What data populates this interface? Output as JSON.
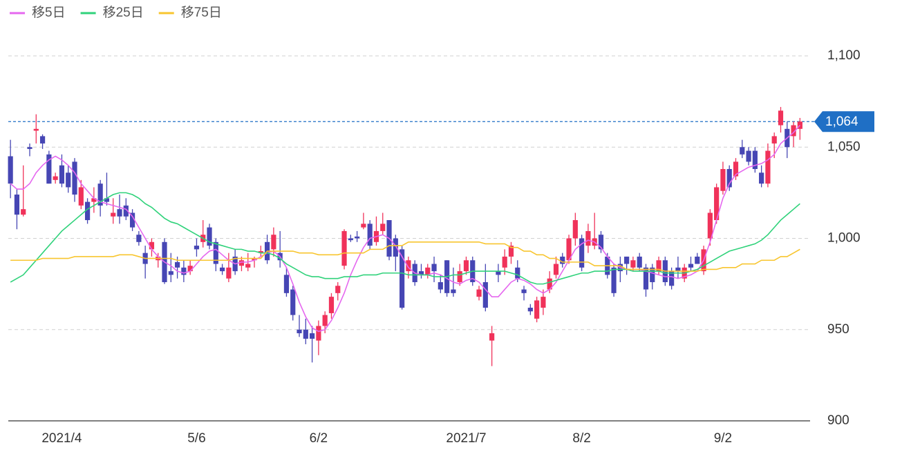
{
  "chart_data": {
    "type": "candlestick",
    "legend": "top-left",
    "up_color": "#f0325a",
    "down_color": "#4646b4",
    "ylim": [
      900,
      1100
    ],
    "yticks": [
      900,
      950,
      {
        "value": 1000,
        "label": "1,000"
      },
      {
        "value": 1050,
        "label": "1,050"
      },
      {
        "value": 1100,
        "label": "1,100"
      }
    ],
    "grid": true,
    "last": {
      "value": 1064,
      "label": "1,064",
      "color": "#1f6fc5"
    },
    "categories": [
      null,
      null,
      null,
      null,
      null,
      null,
      null,
      null,
      "2021/4",
      null,
      null,
      null,
      null,
      null,
      null,
      null,
      null,
      null,
      null,
      null,
      null,
      null,
      null,
      null,
      null,
      null,
      null,
      null,
      null,
      "5/6",
      null,
      null,
      null,
      null,
      null,
      null,
      null,
      null,
      null,
      null,
      null,
      null,
      null,
      null,
      null,
      null,
      null,
      null,
      "6/2",
      null,
      null,
      null,
      null,
      null,
      null,
      null,
      null,
      null,
      null,
      null,
      null,
      null,
      null,
      null,
      null,
      null,
      null,
      null,
      null,
      null,
      null,
      "2021/7",
      null,
      null,
      null,
      null,
      null,
      null,
      null,
      null,
      null,
      null,
      null,
      null,
      null,
      null,
      null,
      null,
      null,
      "8/2",
      null,
      null,
      null,
      null,
      null,
      null,
      null,
      null,
      null,
      null,
      null,
      null,
      null,
      null,
      null,
      null,
      null,
      null,
      null,
      null,
      null,
      "9/2",
      null,
      null,
      null,
      null,
      null,
      null,
      null,
      null,
      null,
      null,
      null,
      null
    ],
    "ohlc": [
      [
        1045,
        1054,
        1022,
        1030
      ],
      [
        1024,
        1027,
        1005,
        1013
      ],
      [
        1013,
        1040,
        1012,
        1016
      ],
      [
        1050,
        1052,
        1045,
        1049
      ],
      [
        1059,
        1068,
        1052,
        1060
      ],
      [
        1056,
        1057,
        1049,
        1052
      ],
      [
        1046,
        1048,
        1030,
        1030
      ],
      [
        1032,
        1036,
        1030,
        1034
      ],
      [
        1040,
        1046,
        1028,
        1030
      ],
      [
        1036,
        1040,
        1025,
        1028
      ],
      [
        1042,
        1044,
        1020,
        1024
      ],
      [
        1018,
        1032,
        1016,
        1028
      ],
      [
        1020,
        1022,
        1008,
        1010
      ],
      [
        1020,
        1028,
        1014,
        1022
      ],
      [
        1030,
        1032,
        1012,
        1018
      ],
      [
        1022,
        1036,
        1018,
        1020
      ],
      [
        1012,
        1022,
        1008,
        1014
      ],
      [
        1016,
        1024,
        1008,
        1012
      ],
      [
        1018,
        1022,
        1010,
        1012
      ],
      [
        1014,
        1016,
        1004,
        1006
      ],
      [
        1002,
        1004,
        996,
        998
      ],
      [
        992,
        996,
        978,
        986
      ],
      [
        994,
        1000,
        990,
        998
      ],
      [
        988,
        992,
        984,
        990
      ],
      [
        998,
        1000,
        975,
        976
      ],
      [
        982,
        992,
        976,
        980
      ],
      [
        987,
        990,
        978,
        984
      ],
      [
        984,
        988,
        976,
        980
      ],
      [
        982,
        988,
        980,
        985
      ],
      [
        996,
        1000,
        990,
        994
      ],
      [
        998,
        1010,
        995,
        1002
      ],
      [
        1006,
        1008,
        994,
        996
      ],
      [
        998,
        1000,
        982,
        986
      ],
      [
        984,
        986,
        980,
        982
      ],
      [
        978,
        992,
        976,
        984
      ],
      [
        990,
        994,
        980,
        982
      ],
      [
        985,
        990,
        982,
        988
      ],
      [
        984,
        992,
        982,
        986
      ],
      [
        988,
        990,
        984,
        989
      ],
      [
        992,
        996,
        990,
        993
      ],
      [
        998,
        1002,
        986,
        988
      ],
      [
        994,
        1006,
        990,
        1002
      ],
      [
        992,
        1004,
        984,
        988
      ],
      [
        980,
        984,
        968,
        970
      ],
      [
        972,
        974,
        955,
        958
      ],
      [
        950,
        958,
        946,
        948
      ],
      [
        950,
        956,
        942,
        945
      ],
      [
        948,
        952,
        932,
        945
      ],
      [
        944,
        955,
        936,
        952
      ],
      [
        952,
        960,
        948,
        958
      ],
      [
        959,
        970,
        956,
        968
      ],
      [
        970,
        976,
        966,
        974
      ],
      [
        985,
        1005,
        983,
        1004
      ],
      [
        1000,
        1002,
        998,
        999
      ],
      [
        1001,
        1004,
        998,
        1000
      ],
      [
        1006,
        1014,
        1005,
        1008
      ],
      [
        1008,
        1010,
        994,
        996
      ],
      [
        998,
        1012,
        996,
        1004
      ],
      [
        1004,
        1014,
        1002,
        1008
      ],
      [
        1010,
        1010,
        988,
        990
      ],
      [
        1000,
        1002,
        982,
        990
      ],
      [
        994,
        996,
        961,
        962
      ],
      [
        982,
        990,
        978,
        988
      ],
      [
        986,
        988,
        974,
        976
      ],
      [
        982,
        986,
        978,
        980
      ],
      [
        980,
        986,
        978,
        984
      ],
      [
        986,
        990,
        976,
        982
      ],
      [
        976,
        980,
        970,
        972
      ],
      [
        988,
        988,
        968,
        970
      ],
      [
        972,
        984,
        968,
        970
      ],
      [
        976,
        986,
        974,
        982
      ],
      [
        982,
        990,
        980,
        988
      ],
      [
        988,
        990,
        974,
        976
      ],
      [
        968,
        974,
        966,
        972
      ],
      [
        976,
        986,
        960,
        962
      ],
      [
        944,
        952,
        930,
        948
      ],
      [
        982,
        986,
        976,
        980
      ],
      [
        984,
        994,
        980,
        990
      ],
      [
        990,
        998,
        986,
        996
      ],
      [
        984,
        988,
        976,
        978
      ],
      [
        972,
        974,
        966,
        970
      ],
      [
        962,
        964,
        958,
        960
      ],
      [
        956,
        968,
        954,
        966
      ],
      [
        962,
        972,
        958,
        968
      ],
      [
        972,
        982,
        970,
        978
      ],
      [
        980,
        990,
        978,
        986
      ],
      [
        990,
        992,
        984,
        986
      ],
      [
        988,
        1002,
        986,
        1000
      ],
      [
        1000,
        1014,
        996,
        1010
      ],
      [
        1000,
        1002,
        982,
        984
      ],
      [
        996,
        1008,
        992,
        1004
      ],
      [
        996,
        1014,
        994,
        1000
      ],
      [
        1002,
        1004,
        992,
        994
      ],
      [
        990,
        992,
        978,
        980
      ],
      [
        984,
        986,
        968,
        970
      ],
      [
        986,
        990,
        976,
        982
      ],
      [
        990,
        990,
        980,
        986
      ],
      [
        984,
        990,
        982,
        988
      ],
      [
        990,
        992,
        982,
        984
      ],
      [
        984,
        986,
        968,
        972
      ],
      [
        984,
        986,
        972,
        976
      ],
      [
        982,
        990,
        980,
        988
      ],
      [
        988,
        990,
        974,
        976
      ],
      [
        982,
        984,
        972,
        974
      ],
      [
        984,
        990,
        978,
        982
      ],
      [
        978,
        986,
        976,
        984
      ],
      [
        986,
        990,
        982,
        984
      ],
      [
        990,
        992,
        986,
        986
      ],
      [
        982,
        996,
        980,
        994
      ],
      [
        1000,
        1016,
        996,
        1014
      ],
      [
        1010,
        1030,
        1008,
        1028
      ],
      [
        1026,
        1042,
        1024,
        1038
      ],
      [
        1038,
        1040,
        1026,
        1028
      ],
      [
        1034,
        1044,
        1032,
        1042
      ],
      [
        1050,
        1054,
        1044,
        1046
      ],
      [
        1048,
        1050,
        1040,
        1042
      ],
      [
        1048,
        1050,
        1036,
        1038
      ],
      [
        1036,
        1040,
        1028,
        1030
      ],
      [
        1030,
        1052,
        1028,
        1048
      ],
      [
        1052,
        1058,
        1044,
        1056
      ],
      [
        1062,
        1072,
        1058,
        1070
      ],
      [
        1060,
        1064,
        1044,
        1050
      ],
      [
        1056,
        1064,
        1050,
        1062
      ],
      [
        1060,
        1066,
        1054,
        1064
      ]
    ],
    "series": [
      {
        "name": "移5日",
        "color": "#e567ef",
        "values": [
          1030,
          1027,
          1027,
          1030,
          1036,
          1040,
          1043,
          1045,
          1043,
          1040,
          1036,
          1030,
          1026,
          1022,
          1020,
          1019,
          1018,
          1017,
          1016,
          1012,
          1006,
          1000,
          994,
          990,
          987,
          985,
          982,
          981,
          982,
          986,
          990,
          993,
          994,
          991,
          988,
          986,
          987,
          987,
          988,
          990,
          992,
          993,
          990,
          984,
          975,
          965,
          957,
          951,
          949,
          950,
          955,
          962,
          970,
          980,
          988,
          995,
          1000,
          1001,
          1002,
          1000,
          996,
          990,
          984,
          981,
          980,
          980,
          981,
          980,
          978,
          976,
          975,
          977,
          978,
          976,
          972,
          968,
          968,
          972,
          976,
          978,
          977,
          975,
          972,
          970,
          972,
          976,
          982,
          988,
          994,
          997,
          999,
          998,
          995,
          990,
          986,
          984,
          983,
          983,
          983,
          982,
          981,
          980,
          979,
          979,
          978,
          979,
          980,
          982,
          988,
          998,
          1010,
          1022,
          1030,
          1035,
          1037,
          1039,
          1040,
          1041,
          1043,
          1046,
          1052,
          1055,
          1058,
          1062
        ]
      },
      {
        "name": "移25日",
        "color": "#2fd27a",
        "values": [
          976,
          978,
          980,
          984,
          988,
          992,
          996,
          1000,
          1004,
          1007,
          1010,
          1013,
          1016,
          1018,
          1020,
          1022,
          1024,
          1025,
          1025,
          1024,
          1022,
          1019,
          1017,
          1014,
          1011,
          1009,
          1008,
          1006,
          1004,
          1002,
          1000,
          998,
          997,
          996,
          995,
          994,
          994,
          993,
          993,
          992,
          992,
          991,
          989,
          986,
          984,
          982,
          980,
          979,
          979,
          978,
          978,
          978,
          979,
          979,
          979,
          980,
          980,
          980,
          981,
          981,
          981,
          981,
          980,
          980,
          980,
          980,
          979,
          979,
          979,
          980,
          980,
          981,
          982,
          982,
          982,
          982,
          982,
          982,
          981,
          980,
          978,
          976,
          975,
          975,
          976,
          977,
          978,
          979,
          980,
          981,
          981,
          982,
          982,
          982,
          983,
          983,
          983,
          982,
          982,
          982,
          982,
          982,
          981,
          981,
          981,
          981,
          982,
          983,
          985,
          987,
          989,
          991,
          993,
          994,
          995,
          996,
          997,
          999,
          1002,
          1006,
          1010,
          1013,
          1016,
          1019
        ]
      },
      {
        "name": "移75日",
        "color": "#f8c52e",
        "values": [
          988,
          988,
          988,
          988,
          988,
          989,
          989,
          989,
          989,
          989,
          990,
          990,
          990,
          990,
          990,
          990,
          990,
          991,
          991,
          991,
          990,
          989,
          989,
          989,
          989,
          989,
          988,
          988,
          988,
          988,
          988,
          988,
          988,
          988,
          988,
          989,
          989,
          989,
          989,
          989,
          993,
          993,
          993,
          993,
          993,
          992,
          992,
          992,
          991,
          991,
          991,
          991,
          992,
          992,
          992,
          992,
          994,
          994,
          994,
          996,
          996,
          996,
          998,
          998,
          998,
          998,
          998,
          998,
          998,
          998,
          998,
          998,
          998,
          998,
          997,
          997,
          997,
          997,
          995,
          995,
          993,
          993,
          991,
          991,
          989,
          989,
          987,
          987,
          987,
          987,
          987,
          985,
          985,
          985,
          985,
          985,
          983,
          983,
          983,
          983,
          983,
          983,
          982,
          982,
          982,
          982,
          982,
          982,
          983,
          983,
          983,
          984,
          984,
          984,
          986,
          986,
          986,
          988,
          988,
          988,
          990,
          990,
          992,
          994
        ]
      }
    ]
  }
}
